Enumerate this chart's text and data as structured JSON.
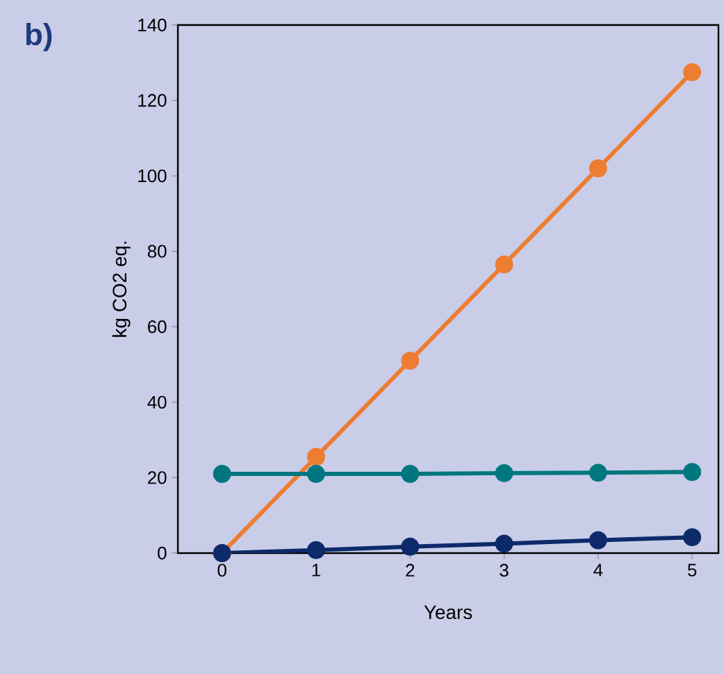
{
  "chart_data": {
    "type": "line",
    "ylabel": "kg CO2 eq.",
    "xlabel": "Years",
    "annotations": [
      "**b)**"
    ],
    "x": [
      0,
      1,
      2,
      3,
      4,
      5
    ],
    "series": [
      {
        "color": "#ed7d31",
        "values": [
          0,
          25.5,
          51,
          76.5,
          102,
          127.5
        ]
      },
      {
        "color": "#00777f",
        "values": [
          21,
          21,
          21,
          21.2,
          21.3,
          21.5
        ]
      },
      {
        "color": "#0d2a6b",
        "values": [
          0,
          0.8,
          1.7,
          2.5,
          3.4,
          4.2
        ]
      }
    ],
    "xlim": [
      -0.47,
      5.28
    ],
    "ylim": [
      0,
      140
    ],
    "xticks": [
      0,
      1,
      2,
      3,
      4,
      5
    ],
    "yticks": [
      0,
      20,
      40,
      60,
      80,
      100,
      120,
      140
    ],
    "grid": false,
    "marker": "circle",
    "line_style": "solid"
  }
}
